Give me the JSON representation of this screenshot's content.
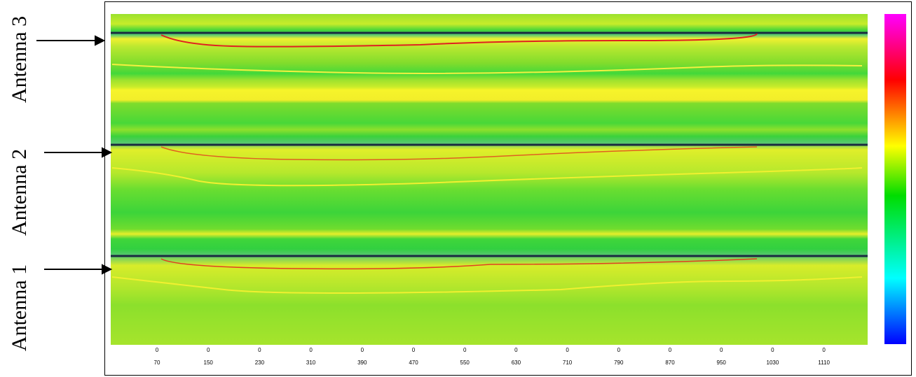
{
  "antenna_labels": [
    "Antenna 3",
    "Antenna 2",
    "Antenna 1"
  ],
  "x_ticks": [
    {
      "top": 0,
      "bottom": 70
    },
    {
      "top": 0,
      "bottom": 150
    },
    {
      "top": 0,
      "bottom": 230
    },
    {
      "top": 0,
      "bottom": 310
    },
    {
      "top": 0,
      "bottom": 390
    },
    {
      "top": 0,
      "bottom": 470
    },
    {
      "top": 0,
      "bottom": 550
    },
    {
      "top": 0,
      "bottom": 630
    },
    {
      "top": 0,
      "bottom": 710
    },
    {
      "top": 0,
      "bottom": 790
    },
    {
      "top": 0,
      "bottom": 870
    },
    {
      "top": 0,
      "bottom": 950
    },
    {
      "top": 0,
      "bottom": 1030
    },
    {
      "top": 0,
      "bottom": 1110
    }
  ]
}
